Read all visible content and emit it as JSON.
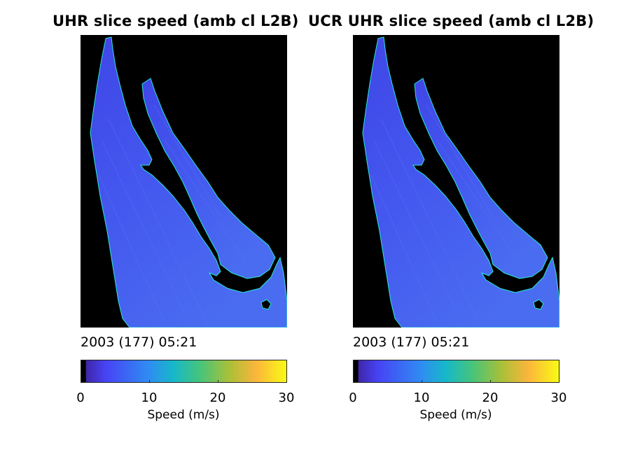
{
  "colormap": {
    "stops": [
      "#000000",
      "#3e26a8",
      "#4743f5",
      "#2f8cf3",
      "#16b8c9",
      "#47c47a",
      "#a9c038",
      "#fbb53c",
      "#f9fb15"
    ],
    "ocean_color": "#4159ee",
    "land_color": "#000000",
    "coast_color": "#27e8d9"
  },
  "panels": [
    {
      "title": "UHR slice speed (amb cl L2B)",
      "timestamp": "2003 (177) 05:21",
      "colorbar": {
        "ticks": [
          "0",
          "10",
          "20",
          "30"
        ],
        "label": "Speed (m/s)",
        "range": [
          0,
          30
        ]
      }
    },
    {
      "title": "UCR UHR slice speed (amb cl L2B)",
      "timestamp": "2003 (177) 05:21",
      "colorbar": {
        "ticks": [
          "0",
          "10",
          "20",
          "30"
        ],
        "label": "Speed (m/s)",
        "range": [
          0,
          30
        ]
      }
    }
  ]
}
